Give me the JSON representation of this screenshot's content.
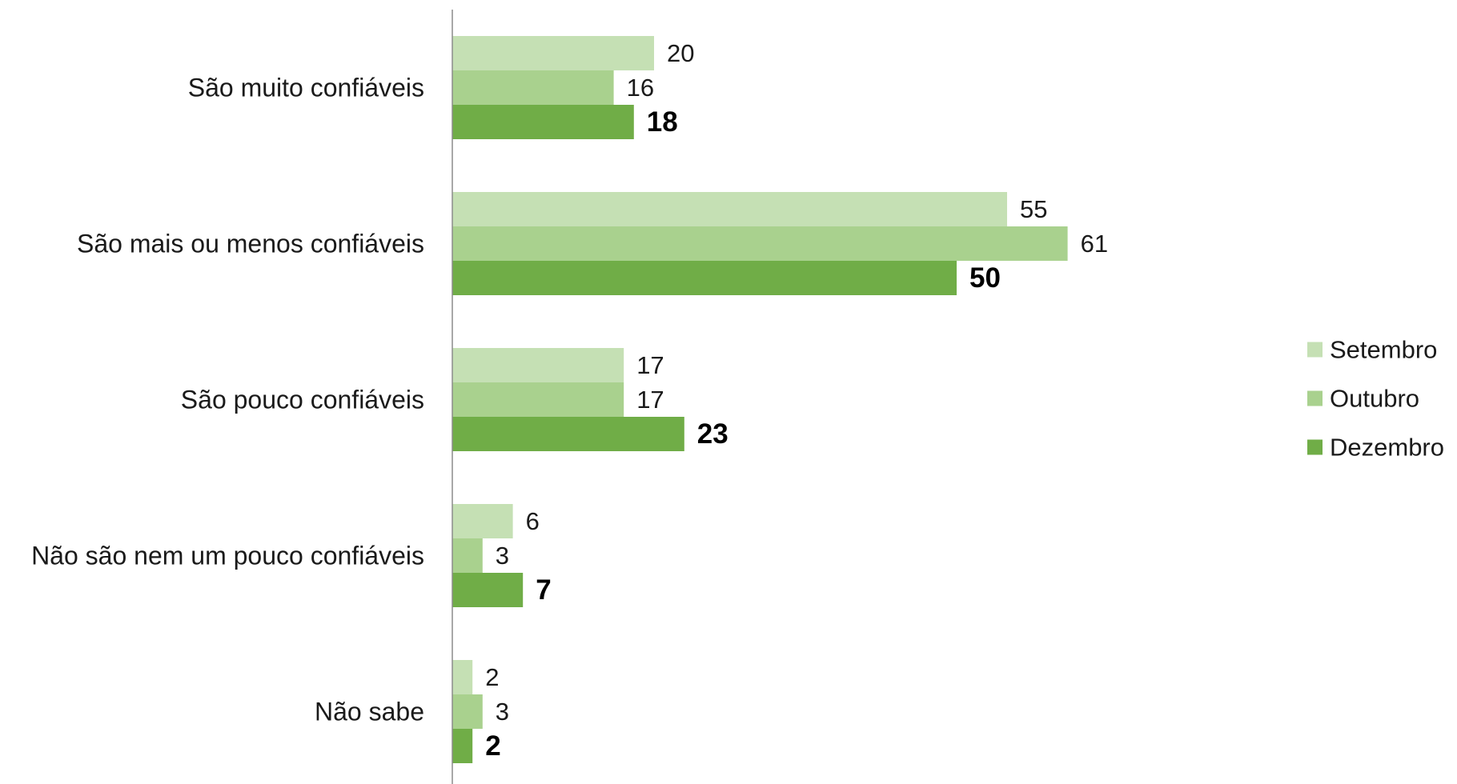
{
  "chart_data": {
    "type": "bar",
    "orientation": "horizontal",
    "title": "",
    "xlabel": "",
    "ylabel": "",
    "xlim": [
      0,
      66
    ],
    "grid": false,
    "legend_position": "right",
    "categories": [
      "São muito confiáveis",
      "São mais ou menos confiáveis",
      "São pouco confiáveis",
      "Não são nem um pouco confiáveis",
      "Não sabe"
    ],
    "series": [
      {
        "name": "Setembro",
        "color": "#c5e0b4",
        "bold_labels": false,
        "values": [
          20,
          55,
          17,
          6,
          2
        ]
      },
      {
        "name": "Outubro",
        "color": "#a9d18e",
        "bold_labels": false,
        "values": [
          16,
          61,
          17,
          3,
          3
        ]
      },
      {
        "name": "Dezembro",
        "color": "#70ad47",
        "bold_labels": true,
        "values": [
          18,
          50,
          23,
          7,
          2
        ]
      }
    ]
  }
}
